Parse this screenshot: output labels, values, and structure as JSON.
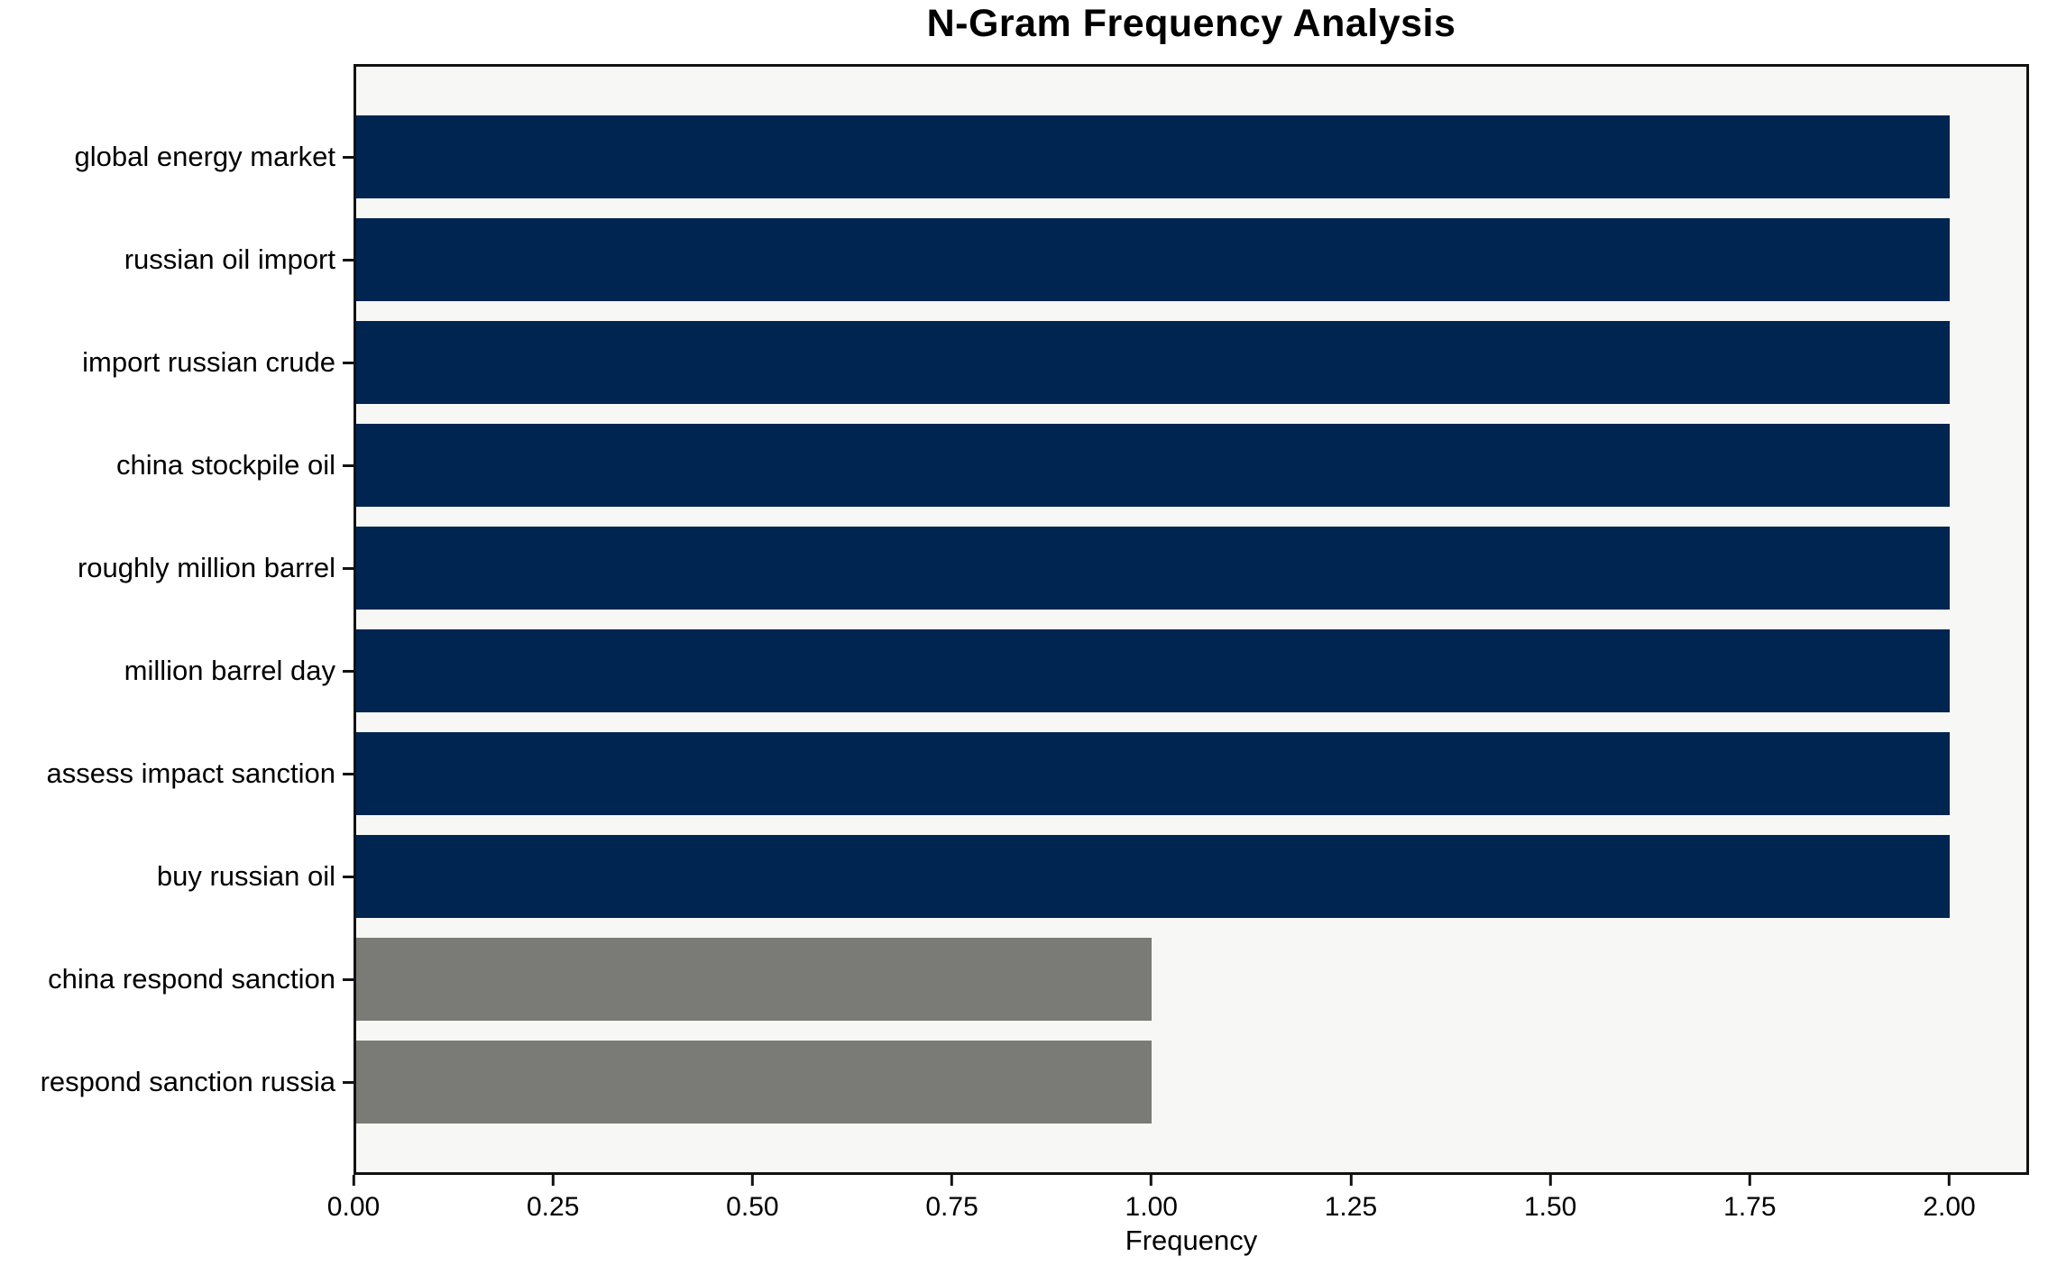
{
  "chart_data": {
    "type": "bar",
    "orientation": "horizontal",
    "title": "N-Gram Frequency Analysis",
    "xlabel": "Frequency",
    "ylabel": "",
    "categories": [
      "global energy market",
      "russian oil import",
      "import russian crude",
      "china stockpile oil",
      "roughly million barrel",
      "million barrel day",
      "assess impact sanction",
      "buy russian oil",
      "china respond sanction",
      "respond sanction russia"
    ],
    "values": [
      2,
      2,
      2,
      2,
      2,
      2,
      2,
      2,
      1,
      1
    ],
    "bar_colors": [
      "#002550",
      "#002550",
      "#002550",
      "#002550",
      "#002550",
      "#002550",
      "#002550",
      "#002550",
      "#7a7a76",
      "#7a7a76"
    ],
    "xlim": [
      0,
      2.1
    ],
    "x_ticks": [
      0.0,
      0.25,
      0.5,
      0.75,
      1.0,
      1.25,
      1.5,
      1.75,
      2.0
    ],
    "x_tick_labels": [
      "0.00",
      "0.25",
      "0.50",
      "0.75",
      "1.00",
      "1.25",
      "1.50",
      "1.75",
      "2.00"
    ],
    "grid": false,
    "legend_position": "none"
  },
  "colors": {
    "bar_high": "#002550",
    "bar_low": "#7a7a76",
    "plot_background": "#f7f7f6",
    "figure_background": "#ffffff",
    "axis_frame": "#121212",
    "text": "#000000"
  }
}
